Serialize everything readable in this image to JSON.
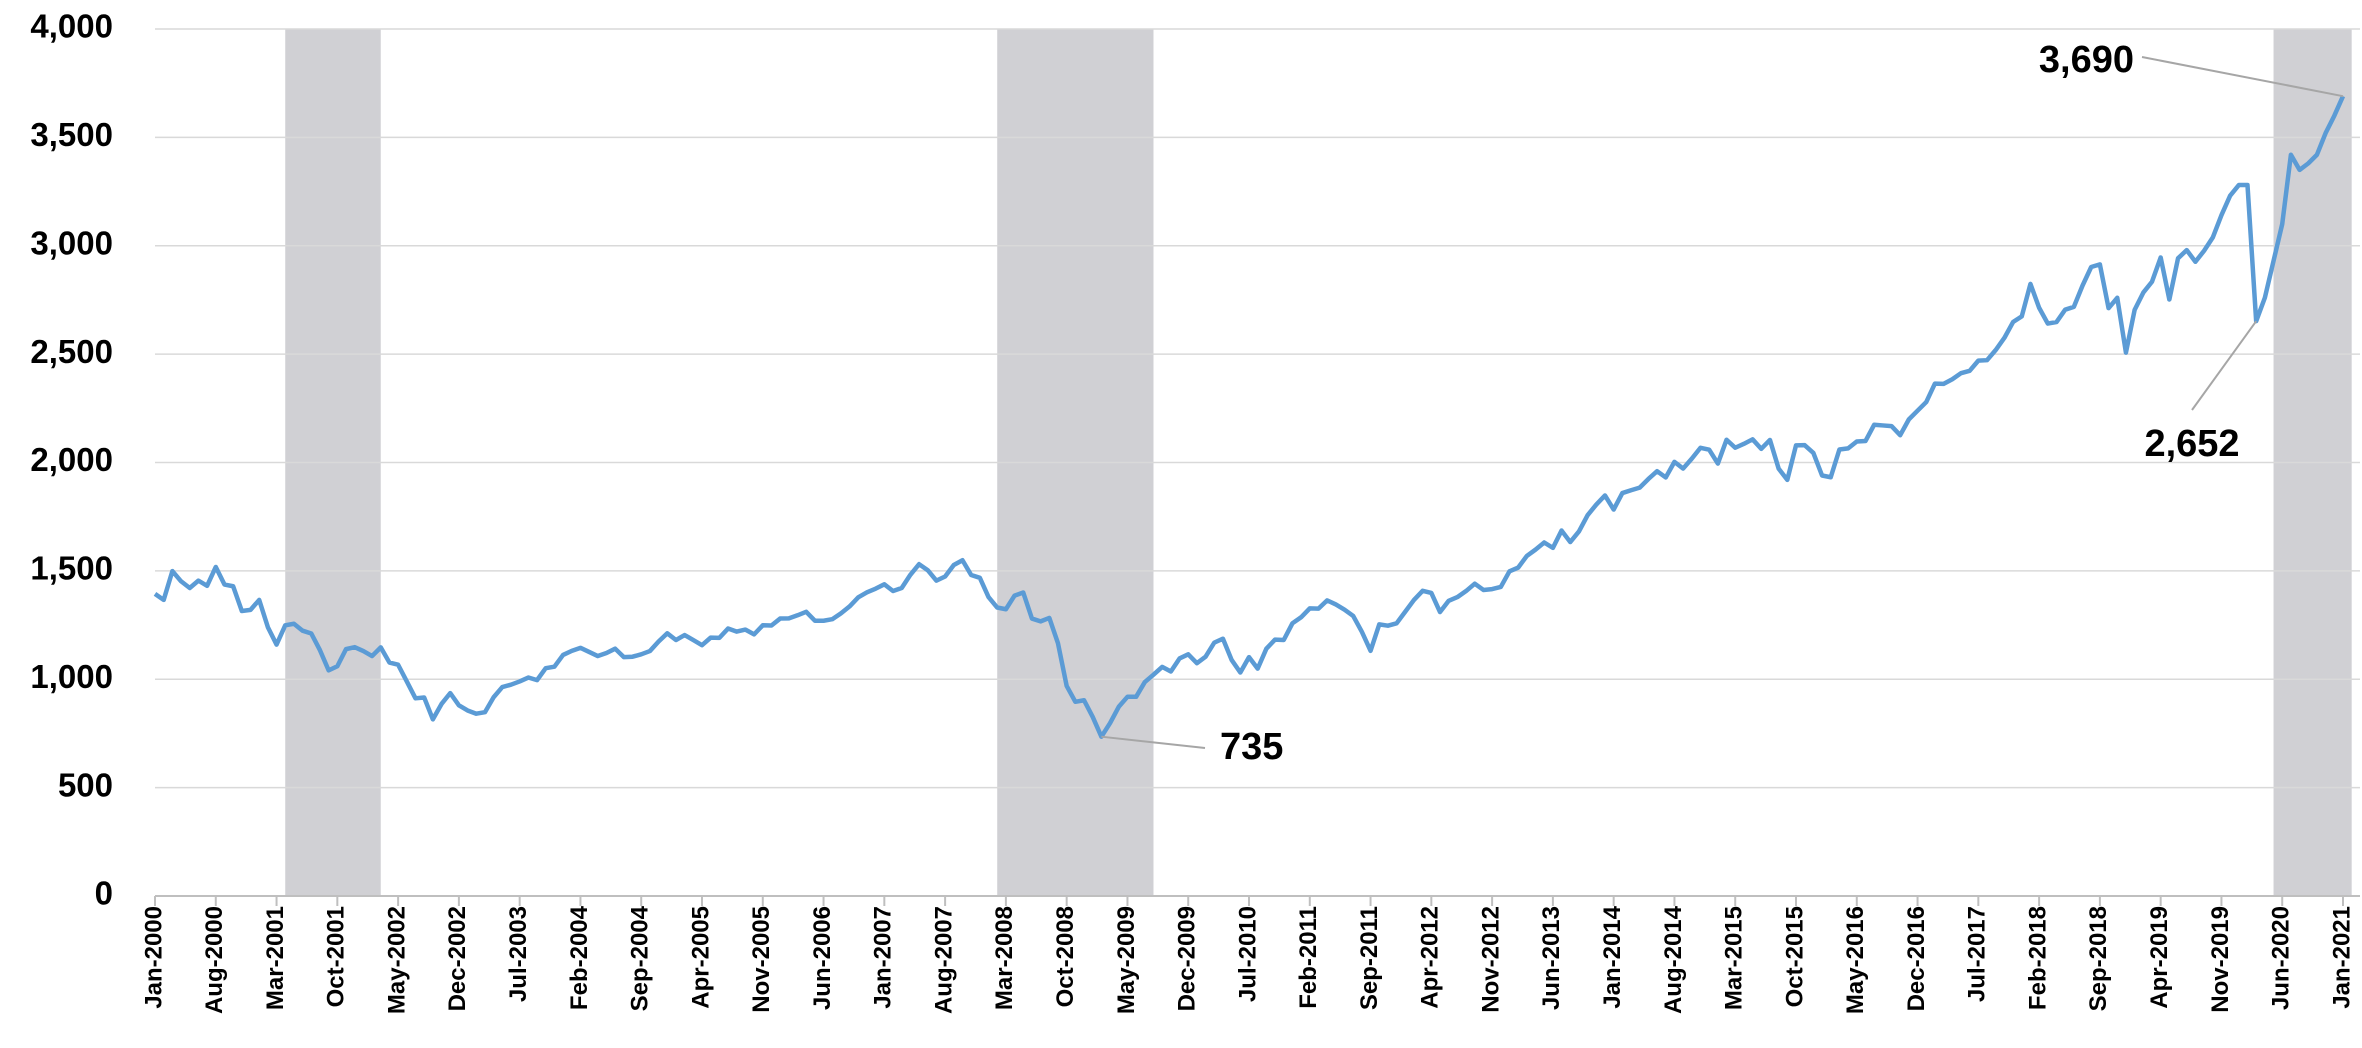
{
  "chart_data": {
    "type": "line",
    "categories": [
      "Jan-2000",
      null,
      null,
      null,
      null,
      null,
      null,
      "Aug-2000",
      null,
      null,
      null,
      null,
      null,
      null,
      "Mar-2001",
      null,
      null,
      null,
      null,
      null,
      null,
      "Oct-2001",
      null,
      null,
      null,
      null,
      null,
      null,
      "May-2002",
      null,
      null,
      null,
      null,
      null,
      null,
      "Dec-2002",
      null,
      null,
      null,
      null,
      null,
      null,
      "Jul-2003",
      null,
      null,
      null,
      null,
      null,
      null,
      "Feb-2004",
      null,
      null,
      null,
      null,
      null,
      null,
      "Sep-2004",
      null,
      null,
      null,
      null,
      null,
      null,
      "Apr-2005",
      null,
      null,
      null,
      null,
      null,
      null,
      "Nov-2005",
      null,
      null,
      null,
      null,
      null,
      null,
      "Jun-2006",
      null,
      null,
      null,
      null,
      null,
      null,
      "Jan-2007",
      null,
      null,
      null,
      null,
      null,
      null,
      "Aug-2007",
      null,
      null,
      null,
      null,
      null,
      null,
      "Mar-2008",
      null,
      null,
      null,
      null,
      null,
      null,
      "Oct-2008",
      null,
      null,
      null,
      null,
      null,
      null,
      "May-2009",
      null,
      null,
      null,
      null,
      null,
      null,
      "Dec-2009",
      null,
      null,
      null,
      null,
      null,
      null,
      "Jul-2010",
      null,
      null,
      null,
      null,
      null,
      null,
      "Feb-2011",
      null,
      null,
      null,
      null,
      null,
      null,
      "Sep-2011",
      null,
      null,
      null,
      null,
      null,
      null,
      "Apr-2012",
      null,
      null,
      null,
      null,
      null,
      null,
      "Nov-2012",
      null,
      null,
      null,
      null,
      null,
      null,
      "Jun-2013",
      null,
      null,
      null,
      null,
      null,
      null,
      "Jan-2014",
      null,
      null,
      null,
      null,
      null,
      null,
      "Aug-2014",
      null,
      null,
      null,
      null,
      null,
      null,
      "Mar-2015",
      null,
      null,
      null,
      null,
      null,
      null,
      "Oct-2015",
      null,
      null,
      null,
      null,
      null,
      null,
      "May-2016",
      null,
      null,
      null,
      null,
      null,
      null,
      "Dec-2016",
      null,
      null,
      null,
      null,
      null,
      null,
      "Jul-2017",
      null,
      null,
      null,
      null,
      null,
      null,
      "Feb-2018",
      null,
      null,
      null,
      null,
      null,
      null,
      "Sep-2018",
      null,
      null,
      null,
      null,
      null,
      null,
      "Apr-2019",
      null,
      null,
      null,
      null,
      null,
      null,
      "Nov-2019",
      null,
      null,
      null,
      null,
      null,
      null,
      "Jun-2020",
      null,
      null,
      null,
      null,
      null,
      null,
      "Jan-2021"
    ],
    "series": [
      {
        "color": "#5b9bd5",
        "values": [
          1394,
          1366,
          1499,
          1452,
          1421,
          1455,
          1431,
          1518,
          1437,
          1429,
          1315,
          1320,
          1366,
          1240,
          1160,
          1249,
          1256,
          1224,
          1211,
          1134,
          1041,
          1060,
          1139,
          1148,
          1130,
          1107,
          1147,
          1077,
          1067,
          990,
          912,
          916,
          815,
          886,
          936,
          880,
          856,
          841,
          848,
          917,
          964,
          975,
          990,
          1008,
          996,
          1051,
          1058,
          1112,
          1131,
          1145,
          1126,
          1107,
          1121,
          1141,
          1102,
          1104,
          1115,
          1130,
          1174,
          1212,
          1181,
          1204,
          1181,
          1157,
          1192,
          1191,
          1234,
          1220,
          1229,
          1207,
          1249,
          1248,
          1280,
          1281,
          1295,
          1311,
          1270,
          1270,
          1277,
          1304,
          1336,
          1378,
          1401,
          1418,
          1438,
          1407,
          1421,
          1482,
          1531,
          1503,
          1455,
          1474,
          1527,
          1549,
          1481,
          1468,
          1379,
          1331,
          1323,
          1386,
          1400,
          1280,
          1267,
          1283,
          1166,
          969,
          896,
          903,
          826,
          735,
          798,
          873,
          919,
          919,
          987,
          1021,
          1057,
          1036,
          1096,
          1115,
          1074,
          1104,
          1169,
          1187,
          1089,
          1031,
          1102,
          1049,
          1141,
          1183,
          1181,
          1258,
          1286,
          1327,
          1326,
          1364,
          1345,
          1321,
          1292,
          1219,
          1131,
          1253,
          1247,
          1258,
          1312,
          1366,
          1408,
          1398,
          1310,
          1362,
          1379,
          1407,
          1441,
          1412,
          1416,
          1426,
          1498,
          1515,
          1569,
          1598,
          1631,
          1606,
          1686,
          1633,
          1682,
          1757,
          1806,
          1848,
          1783,
          1859,
          1872,
          1884,
          1924,
          1960,
          1931,
          2003,
          1972,
          2018,
          2068,
          2059,
          1995,
          2105,
          2068,
          2086,
          2107,
          2063,
          2104,
          1972,
          1920,
          2079,
          2080,
          2044,
          1940,
          1932,
          2060,
          2065,
          2097,
          2099,
          2174,
          2171,
          2168,
          2126,
          2199,
          2239,
          2279,
          2364,
          2363,
          2384,
          2412,
          2423,
          2470,
          2472,
          2519,
          2575,
          2648,
          2674,
          2824,
          2714,
          2641,
          2648,
          2705,
          2718,
          2816,
          2902,
          2914,
          2712,
          2760,
          2507,
          2704,
          2784,
          2834,
          2946,
          2752,
          2942,
          2980,
          2926,
          2977,
          3038,
          3141,
          3231,
          3280,
          3280,
          2652,
          2760,
          2930,
          3100,
          3420,
          3350,
          3380,
          3420,
          3520,
          3600,
          3690
        ]
      }
    ],
    "ylim": [
      0,
      4000
    ],
    "yticks": [
      0,
      500,
      {
        "value": 1000,
        "label": "1,000"
      },
      {
        "value": 1500,
        "label": "1,500"
      },
      {
        "value": 2000,
        "label": "2,000"
      },
      {
        "value": 2500,
        "label": "2,500"
      },
      {
        "value": 3000,
        "label": "3,000"
      },
      {
        "value": 3500,
        "label": "3,500"
      },
      {
        "value": 4000,
        "label": "4,000"
      }
    ],
    "grid": true,
    "shaded_ranges": [
      [
        15,
        26
      ],
      [
        97,
        115
      ],
      [
        244,
        253
      ]
    ],
    "shade_color": "#d0d0d4",
    "annotations": [
      {
        "index": 252,
        "label": "3,690"
      },
      {
        "index": 242,
        "label": "2,652"
      },
      {
        "index": 109,
        "label": "735"
      }
    ]
  }
}
